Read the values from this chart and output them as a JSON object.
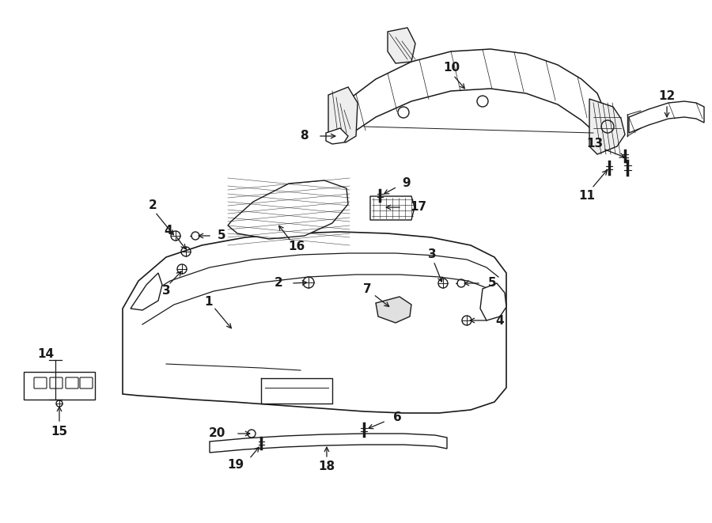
{
  "bg_color": "#ffffff",
  "line_color": "#1a1a1a",
  "fig_width": 9.0,
  "fig_height": 6.61,
  "dpi": 100,
  "lw": 1.0
}
